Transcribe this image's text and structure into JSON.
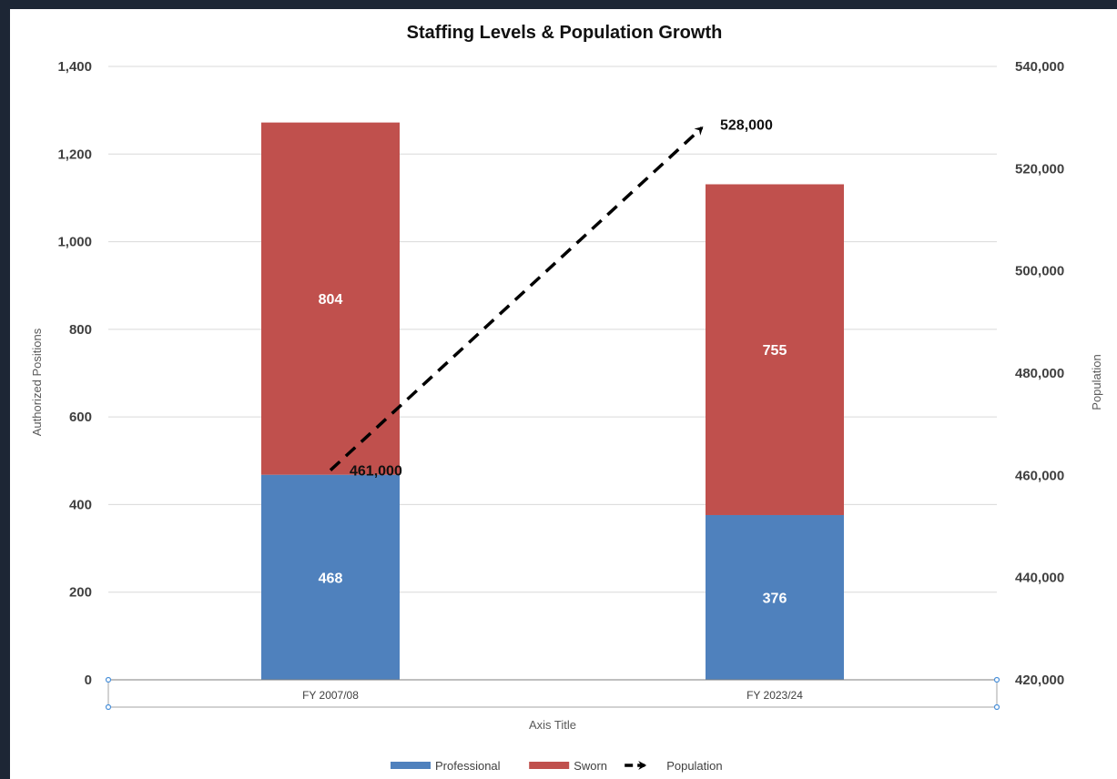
{
  "chart_data": {
    "type": "bar",
    "stacked": true,
    "title": "Staffing  Levels & Population Growth",
    "categories": [
      "FY 2007/08",
      "FY 2023/24"
    ],
    "xlabel": "Axis Title",
    "ylabel": "Authorized Positions",
    "y2label": "Population",
    "ylim": [
      0,
      1400
    ],
    "y2lim": [
      420000,
      540000
    ],
    "yticks": [
      "0",
      "200",
      "400",
      "600",
      "800",
      "1,000",
      "1,200",
      "1,400"
    ],
    "y2ticks": [
      "420,000",
      "440,000",
      "460,000",
      "480,000",
      "500,000",
      "520,000",
      "540,000"
    ],
    "series": [
      {
        "name": "Professional",
        "values": [
          468,
          376
        ],
        "labels": [
          "468",
          "376"
        ],
        "color": "#4f81bd",
        "axis": "left"
      },
      {
        "name": "Sworn",
        "values": [
          804,
          755
        ],
        "labels": [
          "804",
          "755"
        ],
        "color": "#c0504d",
        "axis": "left"
      },
      {
        "name": "Population",
        "values": [
          461000,
          528000
        ],
        "labels": [
          "461,000",
          "528,000"
        ],
        "color": "#000000",
        "axis": "right",
        "style": "dashed-arrow"
      }
    ],
    "grid": true,
    "legend": "bottom"
  }
}
